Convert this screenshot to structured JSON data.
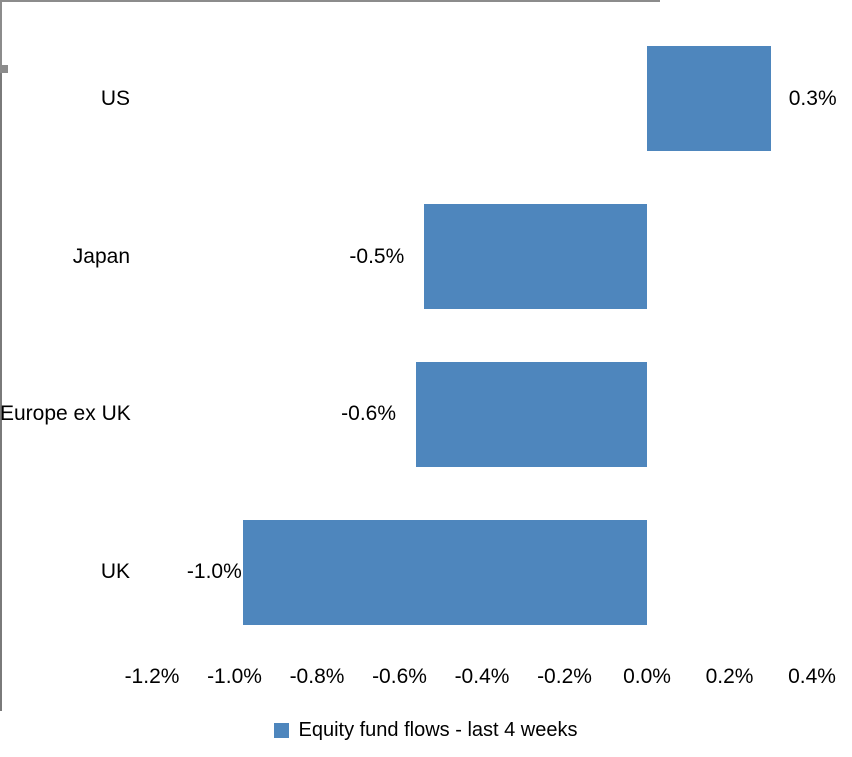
{
  "chart_data": {
    "type": "bar",
    "orientation": "horizontal",
    "title": "",
    "categories": [
      "US",
      "Japan",
      "Europe ex UK",
      "UK"
    ],
    "values": [
      0.3,
      -0.5,
      -0.6,
      -1.0
    ],
    "value_labels": [
      "0.3%",
      "-0.5%",
      "-0.6%",
      "-1.0%"
    ],
    "plot_values": [
      0.3,
      -0.54,
      -0.56,
      -0.98
    ],
    "x_ticks": [
      -1.2,
      -1.0,
      -0.8,
      -0.6,
      -0.4,
      -0.2,
      0.0,
      0.2,
      0.4
    ],
    "x_tick_labels": [
      "-1.2%",
      "-1.0%",
      "-0.8%",
      "-0.6%",
      "-0.4%",
      "-0.2%",
      "0.0%",
      "0.2%",
      "0.4%"
    ],
    "xlim": [
      -1.2,
      0.4
    ],
    "xlabel": "",
    "ylabel": "",
    "grid": false,
    "legend": "Equity fund flows - last 4 weeks",
    "legend_position": "bottom-center",
    "bar_color": "#4E86BD",
    "axis_color": "#8C8C8C",
    "zero_line_color": "#7A7A7A",
    "text_color": "#000000"
  }
}
